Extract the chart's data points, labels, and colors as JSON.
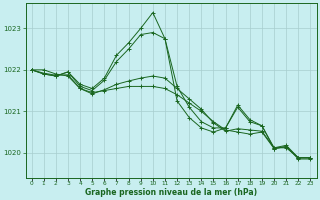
{
  "background_color": "#c8eef0",
  "grid_color": "#a8cece",
  "line_color": "#1a6620",
  "xlabel_label": "Graphe pression niveau de la mer (hPa)",
  "yticks": [
    1020,
    1021,
    1022,
    1023
  ],
  "xticks": [
    0,
    1,
    2,
    3,
    4,
    5,
    6,
    7,
    8,
    9,
    10,
    11,
    12,
    13,
    14,
    15,
    16,
    17,
    18,
    19,
    20,
    21,
    22,
    23
  ],
  "ylim": [
    1019.4,
    1023.6
  ],
  "xlim": [
    -0.5,
    23.5
  ],
  "series": [
    [
      1022.0,
      1022.0,
      1021.9,
      1021.85,
      1021.55,
      1021.45,
      1021.5,
      1021.55,
      1021.6,
      1021.6,
      1021.6,
      1021.55,
      1021.4,
      1021.2,
      1021.0,
      1020.75,
      1020.55,
      1020.5,
      1020.45,
      1020.5,
      1020.1,
      1020.15,
      1019.85,
      1019.85
    ],
    [
      1022.0,
      1021.92,
      1021.87,
      1021.88,
      1021.55,
      1021.42,
      1021.52,
      1021.65,
      1021.73,
      1021.8,
      1021.85,
      1021.8,
      1021.55,
      1021.3,
      1021.05,
      1020.72,
      1020.52,
      1020.58,
      1020.55,
      1020.52,
      1020.12,
      1020.12,
      1019.88,
      1019.88
    ],
    [
      1022.0,
      1021.9,
      1021.85,
      1021.95,
      1021.6,
      1021.5,
      1021.75,
      1022.2,
      1022.5,
      1022.85,
      1022.9,
      1022.75,
      1021.6,
      1021.1,
      1020.75,
      1020.6,
      1020.6,
      1021.1,
      1020.75,
      1020.65,
      1020.1,
      1020.15,
      1019.88,
      1019.88
    ],
    [
      1022.0,
      1021.9,
      1021.85,
      1021.95,
      1021.65,
      1021.55,
      1021.8,
      1022.35,
      1022.65,
      1023.0,
      1023.38,
      1022.75,
      1021.25,
      1020.85,
      1020.6,
      1020.5,
      1020.6,
      1021.15,
      1020.8,
      1020.65,
      1020.12,
      1020.18,
      1019.88,
      1019.88
    ]
  ]
}
